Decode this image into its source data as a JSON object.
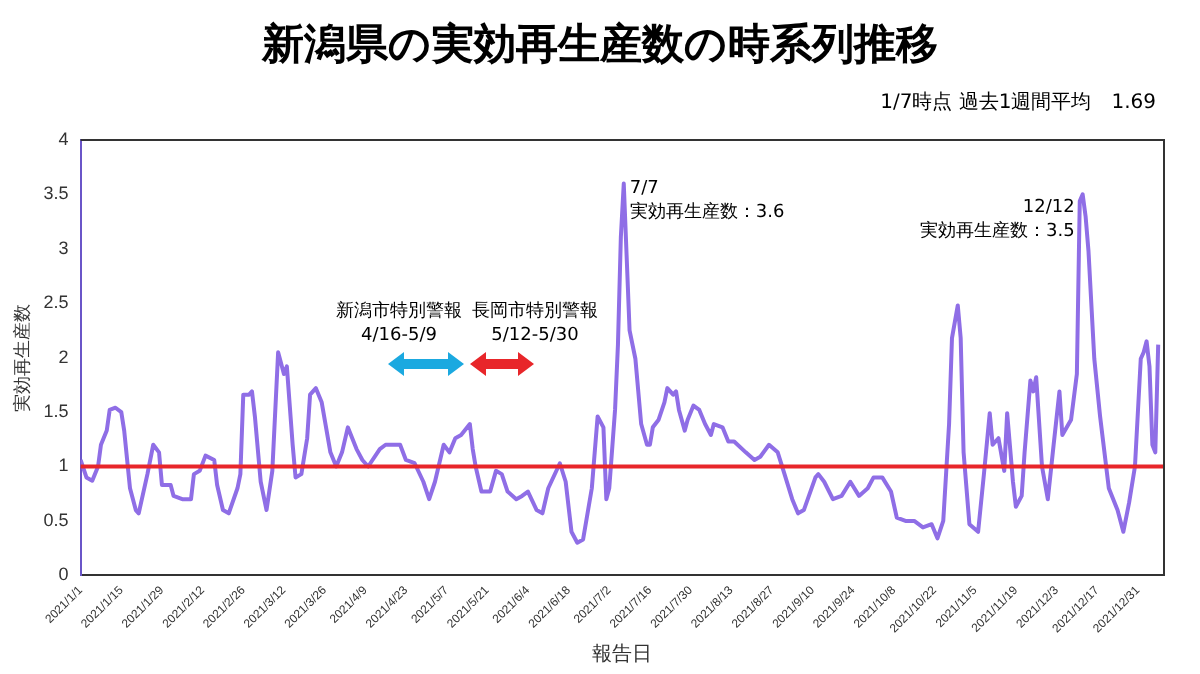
{
  "chart_data": {
    "type": "line",
    "title": "新潟県の実効再生産数の時系列推移",
    "subtitle": "1/7時点 過去1週間平均　1.69",
    "xlabel": "報告日",
    "ylabel": "実効再生産数",
    "annotations": [
      {
        "text": "7/7\n実効再生産数：3.6",
        "x": "2021-07-07",
        "y": 3.6
      },
      {
        "text": "12/12\n実効再生産数：3.5",
        "x": "2021-12-12",
        "y": 3.5
      },
      "新潟市特別警報\n4/16-5/9",
      "長岡市特別警報\n5/12-5/30"
    ],
    "x": [
      "2021-01-01",
      "2021-01-03",
      "2021-01-05",
      "2021-01-07",
      "2021-01-08",
      "2021-01-10",
      "2021-01-11",
      "2021-01-13",
      "2021-01-15",
      "2021-01-16",
      "2021-01-18",
      "2021-01-20",
      "2021-01-21",
      "2021-01-24",
      "2021-01-26",
      "2021-01-28",
      "2021-01-29",
      "2021-02-01",
      "2021-02-02",
      "2021-02-05",
      "2021-02-08",
      "2021-02-09",
      "2021-02-11",
      "2021-02-13",
      "2021-02-16",
      "2021-02-17",
      "2021-02-19",
      "2021-02-21",
      "2021-02-24",
      "2021-02-25",
      "2021-02-26",
      "2021-02-28",
      "2021-03-01",
      "2021-03-02",
      "2021-03-04",
      "2021-03-06",
      "2021-03-08",
      "2021-03-10",
      "2021-03-12",
      "2021-03-13",
      "2021-03-15",
      "2021-03-16",
      "2021-03-18",
      "2021-03-20",
      "2021-03-21",
      "2021-03-23",
      "2021-03-25",
      "2021-03-28",
      "2021-03-30",
      "2021-04-01",
      "2021-04-03",
      "2021-04-06",
      "2021-04-08",
      "2021-04-10",
      "2021-04-14",
      "2021-04-16",
      "2021-04-21",
      "2021-04-23",
      "2021-04-26",
      "2021-04-29",
      "2021-05-01",
      "2021-05-03",
      "2021-05-06",
      "2021-05-08",
      "2021-05-10",
      "2021-05-12",
      "2021-05-15",
      "2021-05-16",
      "2021-05-17",
      "2021-05-19",
      "2021-05-22",
      "2021-05-24",
      "2021-05-26",
      "2021-05-28",
      "2021-05-31",
      "2021-06-02",
      "2021-06-04",
      "2021-06-07",
      "2021-06-09",
      "2021-06-11",
      "2021-06-15",
      "2021-06-17",
      "2021-06-19",
      "2021-06-21",
      "2021-06-23",
      "2021-06-26",
      "2021-06-28",
      "2021-06-30",
      "2021-07-01",
      "2021-07-02",
      "2021-07-04",
      "2021-07-05",
      "2021-07-06",
      "2021-07-07",
      "2021-07-09",
      "2021-07-11",
      "2021-07-13",
      "2021-07-15",
      "2021-07-16",
      "2021-07-17",
      "2021-07-19",
      "2021-07-21",
      "2021-07-22",
      "2021-07-24",
      "2021-07-25",
      "2021-07-26",
      "2021-07-28",
      "2021-07-29",
      "2021-07-31",
      "2021-08-02",
      "2021-08-04",
      "2021-08-06",
      "2021-08-07",
      "2021-08-10",
      "2021-08-12",
      "2021-08-14",
      "2021-08-18",
      "2021-08-21",
      "2021-08-23",
      "2021-08-26",
      "2021-08-29",
      "2021-08-31",
      "2021-09-03",
      "2021-09-05",
      "2021-09-07",
      "2021-09-11",
      "2021-09-12",
      "2021-09-14",
      "2021-09-17",
      "2021-09-20",
      "2021-09-23",
      "2021-09-26",
      "2021-09-29",
      "2021-10-01",
      "2021-10-04",
      "2021-10-07",
      "2021-10-09",
      "2021-10-12",
      "2021-10-15",
      "2021-10-18",
      "2021-10-21",
      "2021-10-23",
      "2021-10-25",
      "2021-10-27",
      "2021-10-28",
      "2021-10-30",
      "2021-10-31",
      "2021-11-01",
      "2021-11-03",
      "2021-11-06",
      "2021-11-08",
      "2021-11-10",
      "2021-11-11",
      "2021-11-13",
      "2021-11-15",
      "2021-11-16",
      "2021-11-18",
      "2021-11-19",
      "2021-11-21",
      "2021-11-22",
      "2021-11-24",
      "2021-11-25",
      "2021-11-26",
      "2021-11-28",
      "2021-11-30",
      "2021-12-02",
      "2021-12-04",
      "2021-12-05",
      "2021-12-08",
      "2021-12-10",
      "2021-12-11",
      "2021-12-12",
      "2021-12-13",
      "2021-12-14",
      "2021-12-16",
      "2021-12-18",
      "2021-12-21",
      "2021-12-24",
      "2021-12-26",
      "2021-12-28",
      "2021-12-30",
      "2022-01-01",
      "2022-01-02",
      "2022-01-03",
      "2022-01-04",
      "2022-01-05",
      "2022-01-06",
      "2022-01-07"
    ],
    "series": [
      {
        "color": "#8f6ee6",
        "values": [
          1.06,
          0.9,
          0.87,
          1.0,
          1.2,
          1.33,
          1.52,
          1.54,
          1.5,
          1.33,
          0.8,
          0.6,
          0.57,
          0.93,
          1.2,
          1.13,
          0.83,
          0.83,
          0.73,
          0.7,
          0.7,
          0.93,
          0.96,
          1.1,
          1.06,
          0.83,
          0.6,
          0.57,
          0.8,
          0.93,
          1.66,
          1.66,
          1.69,
          1.46,
          0.86,
          0.6,
          0.96,
          2.05,
          1.85,
          1.92,
          1.2,
          0.9,
          0.93,
          1.26,
          1.66,
          1.72,
          1.59,
          1.13,
          1.0,
          1.13,
          1.36,
          1.16,
          1.06,
          1.0,
          1.16,
          1.2,
          1.2,
          1.06,
          1.03,
          0.86,
          0.7,
          0.86,
          1.2,
          1.13,
          1.26,
          1.29,
          1.39,
          1.16,
          1.0,
          0.77,
          0.77,
          0.96,
          0.93,
          0.77,
          0.7,
          0.73,
          0.77,
          0.6,
          0.57,
          0.8,
          1.03,
          0.86,
          0.4,
          0.3,
          0.33,
          0.8,
          1.46,
          1.36,
          0.7,
          0.8,
          1.52,
          2.12,
          3.11,
          3.6,
          2.25,
          1.99,
          1.39,
          1.2,
          1.2,
          1.36,
          1.43,
          1.59,
          1.72,
          1.66,
          1.69,
          1.52,
          1.33,
          1.43,
          1.56,
          1.52,
          1.39,
          1.29,
          1.39,
          1.36,
          1.23,
          1.23,
          1.13,
          1.06,
          1.09,
          1.2,
          1.13,
          0.96,
          0.7,
          0.57,
          0.6,
          0.9,
          0.93,
          0.86,
          0.7,
          0.73,
          0.86,
          0.73,
          0.8,
          0.9,
          0.9,
          0.77,
          0.53,
          0.5,
          0.5,
          0.44,
          0.47,
          0.34,
          0.5,
          1.39,
          2.18,
          2.48,
          2.18,
          1.13,
          0.47,
          0.4,
          0.93,
          1.49,
          1.2,
          1.26,
          0.96,
          1.49,
          0.86,
          0.63,
          0.73,
          1.13,
          1.79,
          1.69,
          1.82,
          1.0,
          0.7,
          1.2,
          1.69,
          1.29,
          1.43,
          1.85,
          3.44,
          3.5,
          3.3,
          2.98,
          1.99,
          1.46,
          0.8,
          0.6,
          0.4,
          0.67,
          1.0,
          1.99,
          2.05,
          2.15,
          1.92,
          1.2,
          1.13,
          2.12
        ]
      }
    ],
    "xlim": [
      "2021-01-01",
      "2022-01-09"
    ],
    "xticks": [
      {
        "value": "2021-01-01",
        "label": "2021/1/1"
      },
      {
        "value": "2021-01-15",
        "label": "2021/1/15"
      },
      {
        "value": "2021-01-29",
        "label": "2021/1/29"
      },
      {
        "value": "2021-02-12",
        "label": "2021/2/12"
      },
      {
        "value": "2021-02-26",
        "label": "2021/2/26"
      },
      {
        "value": "2021-03-12",
        "label": "2021/3/12"
      },
      {
        "value": "2021-03-26",
        "label": "2021/3/26"
      },
      {
        "value": "2021-04-09",
        "label": "2021/4/9"
      },
      {
        "value": "2021-04-23",
        "label": "2021/4/23"
      },
      {
        "value": "2021-05-07",
        "label": "2021/5/7"
      },
      {
        "value": "2021-05-21",
        "label": "2021/5/21"
      },
      {
        "value": "2021-06-04",
        "label": "2021/6/4"
      },
      {
        "value": "2021-06-18",
        "label": "2021/6/18"
      },
      {
        "value": "2021-07-02",
        "label": "2021/7/2"
      },
      {
        "value": "2021-07-16",
        "label": "2021/7/16"
      },
      {
        "value": "2021-07-30",
        "label": "2021/7/30"
      },
      {
        "value": "2021-08-13",
        "label": "2021/8/13"
      },
      {
        "value": "2021-08-27",
        "label": "2021/8/27"
      },
      {
        "value": "2021-09-10",
        "label": "2021/9/10"
      },
      {
        "value": "2021-09-24",
        "label": "2021/9/24"
      },
      {
        "value": "2021-10-08",
        "label": "2021/10/8"
      },
      {
        "value": "2021-10-22",
        "label": "2021/10/22"
      },
      {
        "value": "2021-11-05",
        "label": "2021/11/5"
      },
      {
        "value": "2021-11-19",
        "label": "2021/11/19"
      },
      {
        "value": "2021-12-03",
        "label": "2021/12/3"
      },
      {
        "value": "2021-12-17",
        "label": "2021/12/17"
      },
      {
        "value": "2021-12-31",
        "label": "2021/12/31"
      }
    ],
    "ylim": [
      0,
      4
    ],
    "yticks": [
      0,
      0.5,
      1,
      1.5,
      2,
      2.5,
      3,
      3.5,
      4
    ],
    "ref_lines": [
      {
        "axis": "y",
        "value": 1,
        "color": "#e8262a"
      }
    ],
    "marker": "none",
    "line_style": "solid",
    "grid": false,
    "legend": false
  }
}
